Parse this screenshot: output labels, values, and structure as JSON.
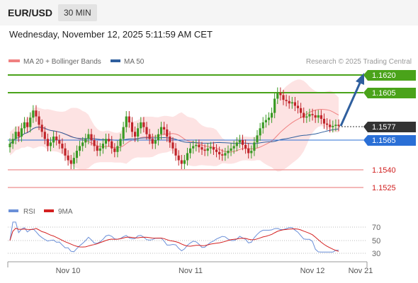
{
  "header": {
    "symbol": "EUR/USD",
    "timeframe": "30 MIN",
    "datetime": "Wednesday, November 12, 2025 5:11:59 AM CET"
  },
  "legend": {
    "ma20_label": "MA 20 + Bollinger Bands",
    "ma50_label": "MA 50",
    "copyright": "Research © 2025 Trading Central",
    "colors": {
      "ma20": "#f08080",
      "ma50": "#2f5f9e",
      "band_fill": "#fde3e3"
    }
  },
  "levels": [
    {
      "value": "1.1620",
      "type": "resistance",
      "color": "#4aa31a"
    },
    {
      "value": "1.1605",
      "type": "resistance",
      "color": "#4aa31a"
    },
    {
      "value": "1.1577",
      "type": "current",
      "color": "#333333"
    },
    {
      "value": "1.1565",
      "type": "pivot",
      "color": "#2a6fd6"
    },
    {
      "value": "1.1540",
      "type": "support",
      "color": "#e03030"
    },
    {
      "value": "1.1525",
      "type": "support",
      "color": "#e03030"
    }
  ],
  "rsi_panel": {
    "rsi_label": "RSI",
    "ma_label": "9MA",
    "colors": {
      "rsi": "#6a8fd8",
      "ma": "#d42020"
    },
    "ticks": [
      "70",
      "50",
      "30"
    ]
  },
  "x_axis": {
    "labels": [
      "Nov 10",
      "Nov 11",
      "Nov 12",
      "Nov 21"
    ]
  },
  "chart_data": {
    "type": "candlestick",
    "instrument": "EUR/USD",
    "interval": "30 MIN",
    "ylim": [
      1.1518,
      1.163
    ],
    "close_series": [
      1.1562,
      1.1566,
      1.1572,
      1.1568,
      1.1575,
      1.158,
      1.1576,
      1.1584,
      1.159,
      1.1585,
      1.1578,
      1.1572,
      1.1566,
      1.156,
      1.1563,
      1.1568,
      1.1565,
      1.1562,
      1.1558,
      1.1552,
      1.1548,
      1.1545,
      1.155,
      1.1556,
      1.156,
      1.1563,
      1.1566,
      1.157,
      1.1565,
      1.156,
      1.1556,
      1.1558,
      1.1562,
      1.1566,
      1.1564,
      1.1558,
      1.1555,
      1.156,
      1.1566,
      1.1576,
      1.1585,
      1.158,
      1.1572,
      1.1568,
      1.1575,
      1.158,
      1.1576,
      1.157,
      1.1566,
      1.1562,
      1.1565,
      1.157,
      1.1576,
      1.1574,
      1.1568,
      1.1563,
      1.1558,
      1.1552,
      1.1548,
      1.1545,
      1.1548,
      1.1554,
      1.1558,
      1.156,
      1.1561,
      1.1559,
      1.1557,
      1.1556,
      1.1558,
      1.1559,
      1.1557,
      1.1555,
      1.1553,
      1.1552,
      1.1554,
      1.1556,
      1.1558,
      1.156,
      1.1563,
      1.1565,
      1.1561,
      1.1558,
      1.1554,
      1.1556,
      1.1563,
      1.1569,
      1.1575,
      1.158,
      1.1582,
      1.1584,
      1.1588,
      1.16,
      1.1605,
      1.1603,
      1.1599,
      1.1598,
      1.1596,
      1.1597,
      1.1594,
      1.1592,
      1.1588,
      1.1584,
      1.1585,
      1.1587,
      1.1586,
      1.1584,
      1.1586,
      1.1583,
      1.1579,
      1.1578,
      1.1576,
      1.1577,
      1.1578,
      1.1577
    ],
    "scenario_target": 1.162,
    "rsi": {
      "levels": [
        70,
        50,
        30
      ]
    }
  }
}
